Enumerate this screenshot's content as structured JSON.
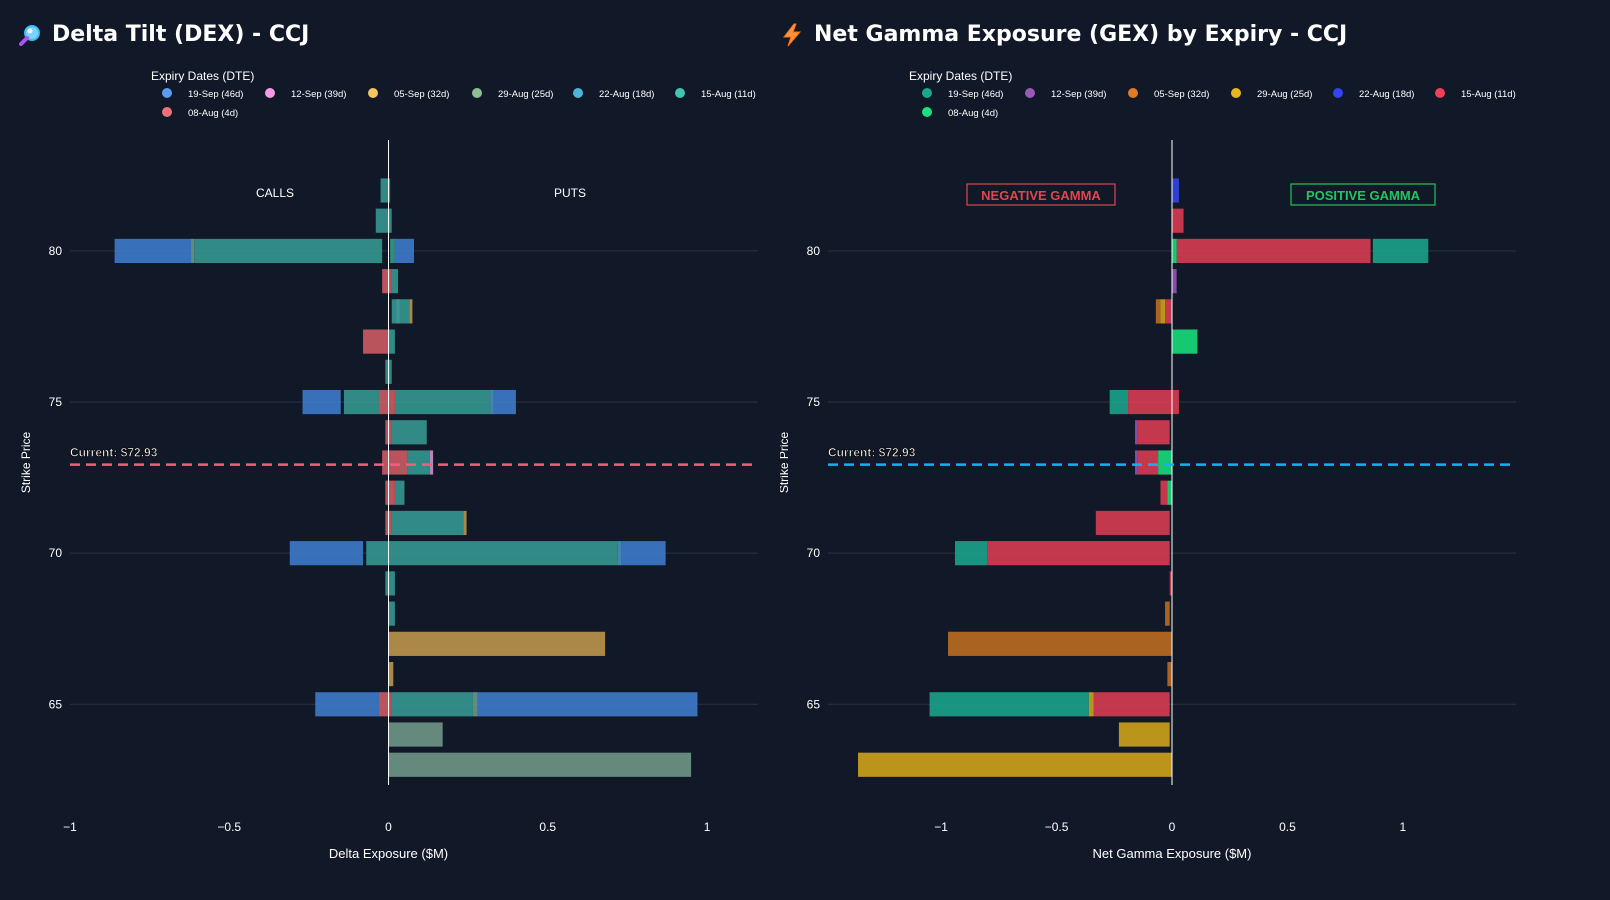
{
  "colors": {
    "background": "#111827",
    "grid": "#2a3342",
    "zero_line": "#ffffff",
    "current_dex": "#f0607e",
    "current_gex": "#1ab0ee",
    "negative_gamma": "#e0464e",
    "positive_gamma": "#22c55e"
  },
  "left_panel": {
    "title": "Delta Tilt (DEX) - CCJ",
    "icon": "magnifier-icon"
  },
  "right_panel": {
    "title": "Net Gamma Exposure (GEX) by Expiry - CCJ",
    "icon": "lightning-icon"
  },
  "chart_data": [
    {
      "id": "dex",
      "type": "bar",
      "orientation": "horizontal",
      "barmode": "relative",
      "title": "Delta Tilt (DEX) - CCJ",
      "xlabel": "Delta Exposure ($M)",
      "ylabel": "Strike Price",
      "xlim": [
        -1.0,
        1.16
      ],
      "xticks": [
        -1,
        -0.5,
        0,
        0.5,
        1
      ],
      "xtick_labels": [
        "−1",
        "−0.5",
        "0",
        "0.5",
        "1"
      ],
      "ylim": [
        62.33,
        83.67
      ],
      "yticks": [
        65,
        70,
        75,
        80
      ],
      "grid": true,
      "legend": {
        "title": "Expiry Dates (DTE)",
        "placement": "top",
        "entries": [
          {
            "name": "19-Sep (46d)",
            "color": "#5b9cf0"
          },
          {
            "name": "12-Sep (39d)",
            "color": "#f49ae6"
          },
          {
            "name": "05-Sep (32d)",
            "color": "#f5c65c"
          },
          {
            "name": "29-Aug (25d)",
            "color": "#8ebf93"
          },
          {
            "name": "22-Aug (18d)",
            "color": "#4fb4d8"
          },
          {
            "name": "15-Aug (11d)",
            "color": "#44c2b2"
          },
          {
            "name": "08-Aug (4d)",
            "color": "#f0707a"
          }
        ]
      },
      "annotations": {
        "calls_label": "CALLS",
        "puts_label": "PUTS",
        "current_label": "Current: $72.93",
        "current_price": 72.93
      },
      "series": [
        {
          "name": "19-Sep (46d)",
          "color": "#3d78c7",
          "values": [
            {
              "strike": 80,
              "x0": -0.86,
              "x1": -0.62
            },
            {
              "strike": 80,
              "x0": 0.02,
              "x1": 0.08
            },
            {
              "strike": 75,
              "x0": -0.27,
              "x1": -0.15
            },
            {
              "strike": 75,
              "x0": 0.33,
              "x1": 0.4
            },
            {
              "strike": 70,
              "x0": -0.31,
              "x1": -0.08
            },
            {
              "strike": 70,
              "x0": 0.73,
              "x1": 0.87
            },
            {
              "strike": 65,
              "x0": -0.23,
              "x1": -0.03
            },
            {
              "strike": 65,
              "x0": 0.28,
              "x1": 0.97
            }
          ]
        },
        {
          "name": "12-Sep (39d)",
          "color": "#c98dc6",
          "values": [
            {
              "strike": 78,
              "x0": 0.025,
              "x1": 0.035
            },
            {
              "strike": 73,
              "x0": 0.13,
              "x1": 0.14
            }
          ]
        },
        {
          "name": "05-Sep (32d)",
          "color": "#b8924a",
          "values": [
            {
              "strike": 67,
              "x0": 0.0,
              "x1": 0.68
            },
            {
              "strike": 66,
              "x0": 0.0,
              "x1": 0.015
            },
            {
              "strike": 78,
              "x0": 0.065,
              "x1": 0.075
            },
            {
              "strike": 71,
              "x0": 0.235,
              "x1": 0.245
            }
          ]
        },
        {
          "name": "29-Aug (25d)",
          "color": "#6e9484",
          "values": [
            {
              "strike": 63,
              "x0": 0.0,
              "x1": 0.95
            },
            {
              "strike": 64,
              "x0": 0.0,
              "x1": 0.17
            },
            {
              "strike": 65,
              "x0": 0.265,
              "x1": 0.28
            },
            {
              "strike": 80,
              "x0": -0.62,
              "x1": -0.61
            }
          ]
        },
        {
          "name": "22-Aug (18d)",
          "color": "#4a8fb8",
          "values": [
            {
              "strike": 75,
              "x0": 0.32,
              "x1": 0.33
            },
            {
              "strike": 70,
              "x0": 0.72,
              "x1": 0.73
            }
          ]
        },
        {
          "name": "15-Aug (11d)",
          "color": "#35958e",
          "values": [
            {
              "strike": 82,
              "x0": -0.025,
              "x1": 0.005
            },
            {
              "strike": 81,
              "x0": -0.04,
              "x1": 0.01
            },
            {
              "strike": 80,
              "x0": -0.61,
              "x1": -0.02
            },
            {
              "strike": 80,
              "x0": 0.005,
              "x1": 0.02
            },
            {
              "strike": 79,
              "x0": 0.01,
              "x1": 0.03
            },
            {
              "strike": 78,
              "x0": 0.01,
              "x1": 0.065
            },
            {
              "strike": 77,
              "x0": 0.0,
              "x1": 0.02
            },
            {
              "strike": 76,
              "x0": -0.01,
              "x1": 0.01
            },
            {
              "strike": 75,
              "x0": -0.14,
              "x1": -0.03
            },
            {
              "strike": 75,
              "x0": 0.02,
              "x1": 0.32
            },
            {
              "strike": 74,
              "x0": 0.01,
              "x1": 0.12
            },
            {
              "strike": 73,
              "x0": 0.06,
              "x1": 0.13
            },
            {
              "strike": 72,
              "x0": 0.02,
              "x1": 0.05
            },
            {
              "strike": 71,
              "x0": 0.01,
              "x1": 0.235
            },
            {
              "strike": 70,
              "x0": -0.07,
              "x1": 0.72
            },
            {
              "strike": 69,
              "x0": -0.01,
              "x1": 0.02
            },
            {
              "strike": 68,
              "x0": 0.0,
              "x1": 0.02
            },
            {
              "strike": 65,
              "x0": 0.01,
              "x1": 0.265
            }
          ]
        },
        {
          "name": "08-Aug (4d)",
          "color": "#c85a62",
          "values": [
            {
              "strike": 79,
              "x0": -0.02,
              "x1": 0.01
            },
            {
              "strike": 77,
              "x0": -0.08,
              "x1": 0.0
            },
            {
              "strike": 75,
              "x0": -0.03,
              "x1": 0.02
            },
            {
              "strike": 74,
              "x0": -0.01,
              "x1": 0.01
            },
            {
              "strike": 73,
              "x0": -0.02,
              "x1": 0.06
            },
            {
              "strike": 72,
              "x0": -0.01,
              "x1": 0.02
            },
            {
              "strike": 71,
              "x0": -0.01,
              "x1": 0.01
            },
            {
              "strike": 65,
              "x0": -0.03,
              "x1": 0.01
            }
          ]
        }
      ]
    },
    {
      "id": "gex",
      "type": "bar",
      "orientation": "horizontal",
      "barmode": "relative",
      "title": "Net Gamma Exposure (GEX) by Expiry - CCJ",
      "xlabel": "Net Gamma Exposure ($M)",
      "ylabel": "Strike Price",
      "xlim": [
        -1.49,
        1.49
      ],
      "xticks": [
        -1,
        -0.5,
        0,
        0.5,
        1
      ],
      "xtick_labels": [
        "−1",
        "−0.5",
        "0",
        "0.5",
        "1"
      ],
      "ylim": [
        62.33,
        83.67
      ],
      "yticks": [
        65,
        70,
        75,
        80
      ],
      "grid": true,
      "legend": {
        "title": "Expiry Dates (DTE)",
        "placement": "top",
        "entries": [
          {
            "name": "19-Sep (46d)",
            "color": "#1aa88a"
          },
          {
            "name": "12-Sep (39d)",
            "color": "#9b59b6"
          },
          {
            "name": "05-Sep (32d)",
            "color": "#e07b26"
          },
          {
            "name": "29-Aug (25d)",
            "color": "#e6b820"
          },
          {
            "name": "22-Aug (18d)",
            "color": "#3344ee"
          },
          {
            "name": "15-Aug (11d)",
            "color": "#ef4058"
          },
          {
            "name": "08-Aug (4d)",
            "color": "#1be07c"
          }
        ]
      },
      "annotations": {
        "negative_label": "NEGATIVE GAMMA",
        "positive_label": "POSITIVE GAMMA",
        "current_label": "Current: $72.93",
        "current_price": 72.93
      },
      "series": [
        {
          "name": "19-Sep (46d)",
          "color": "#1aa088",
          "values": [
            {
              "strike": 80,
              "x0": 0.87,
              "x1": 1.11
            },
            {
              "strike": 75,
              "x0": -0.27,
              "x1": -0.19
            },
            {
              "strike": 70,
              "x0": -0.94,
              "x1": -0.8
            },
            {
              "strike": 65,
              "x0": -1.05,
              "x1": -0.36
            }
          ]
        },
        {
          "name": "12-Sep (39d)",
          "color": "#8e55b0",
          "values": [
            {
              "strike": 79,
              "x0": 0.0,
              "x1": 0.02
            },
            {
              "strike": 74,
              "x0": -0.16,
              "x1": -0.15
            },
            {
              "strike": 73,
              "x0": -0.16,
              "x1": -0.15
            }
          ]
        },
        {
          "name": "05-Sep (32d)",
          "color": "#b96a22",
          "values": [
            {
              "strike": 67,
              "x0": -0.97,
              "x1": 0.0
            },
            {
              "strike": 66,
              "x0": -0.02,
              "x1": 0.0
            },
            {
              "strike": 68,
              "x0": -0.03,
              "x1": -0.01
            },
            {
              "strike": 78,
              "x0": -0.07,
              "x1": -0.05
            }
          ]
        },
        {
          "name": "29-Aug (25d)",
          "color": "#c9a01a",
          "values": [
            {
              "strike": 63,
              "x0": -1.36,
              "x1": 0.0
            },
            {
              "strike": 64,
              "x0": -0.23,
              "x1": -0.01
            },
            {
              "strike": 65,
              "x0": -0.36,
              "x1": -0.34
            },
            {
              "strike": 78,
              "x0": -0.05,
              "x1": -0.03
            }
          ]
        },
        {
          "name": "22-Aug (18d)",
          "color": "#3344dd",
          "values": [
            {
              "strike": 82,
              "x0": 0.0,
              "x1": 0.03
            }
          ]
        },
        {
          "name": "15-Aug (11d)",
          "color": "#d43c50",
          "values": [
            {
              "strike": 81,
              "x0": 0.0,
              "x1": 0.05
            },
            {
              "strike": 80,
              "x0": 0.02,
              "x1": 0.86
            },
            {
              "strike": 78,
              "x0": -0.03,
              "x1": 0.0
            },
            {
              "strike": 75,
              "x0": -0.19,
              "x1": 0.03
            },
            {
              "strike": 74,
              "x0": -0.15,
              "x1": -0.01
            },
            {
              "strike": 73,
              "x0": -0.15,
              "x1": -0.06
            },
            {
              "strike": 72,
              "x0": -0.05,
              "x1": -0.02
            },
            {
              "strike": 71,
              "x0": -0.33,
              "x1": -0.01
            },
            {
              "strike": 70,
              "x0": -0.8,
              "x1": -0.01
            },
            {
              "strike": 69,
              "x0": -0.01,
              "x1": 0.0
            },
            {
              "strike": 65,
              "x0": -0.34,
              "x1": -0.01
            }
          ]
        },
        {
          "name": "08-Aug (4d)",
          "color": "#18d87a",
          "values": [
            {
              "strike": 77,
              "x0": 0.0,
              "x1": 0.11
            },
            {
              "strike": 73,
              "x0": -0.06,
              "x1": 0.0
            },
            {
              "strike": 72,
              "x0": -0.02,
              "x1": 0.0
            },
            {
              "strike": 80,
              "x0": 0.0,
              "x1": 0.02
            }
          ]
        }
      ]
    }
  ]
}
